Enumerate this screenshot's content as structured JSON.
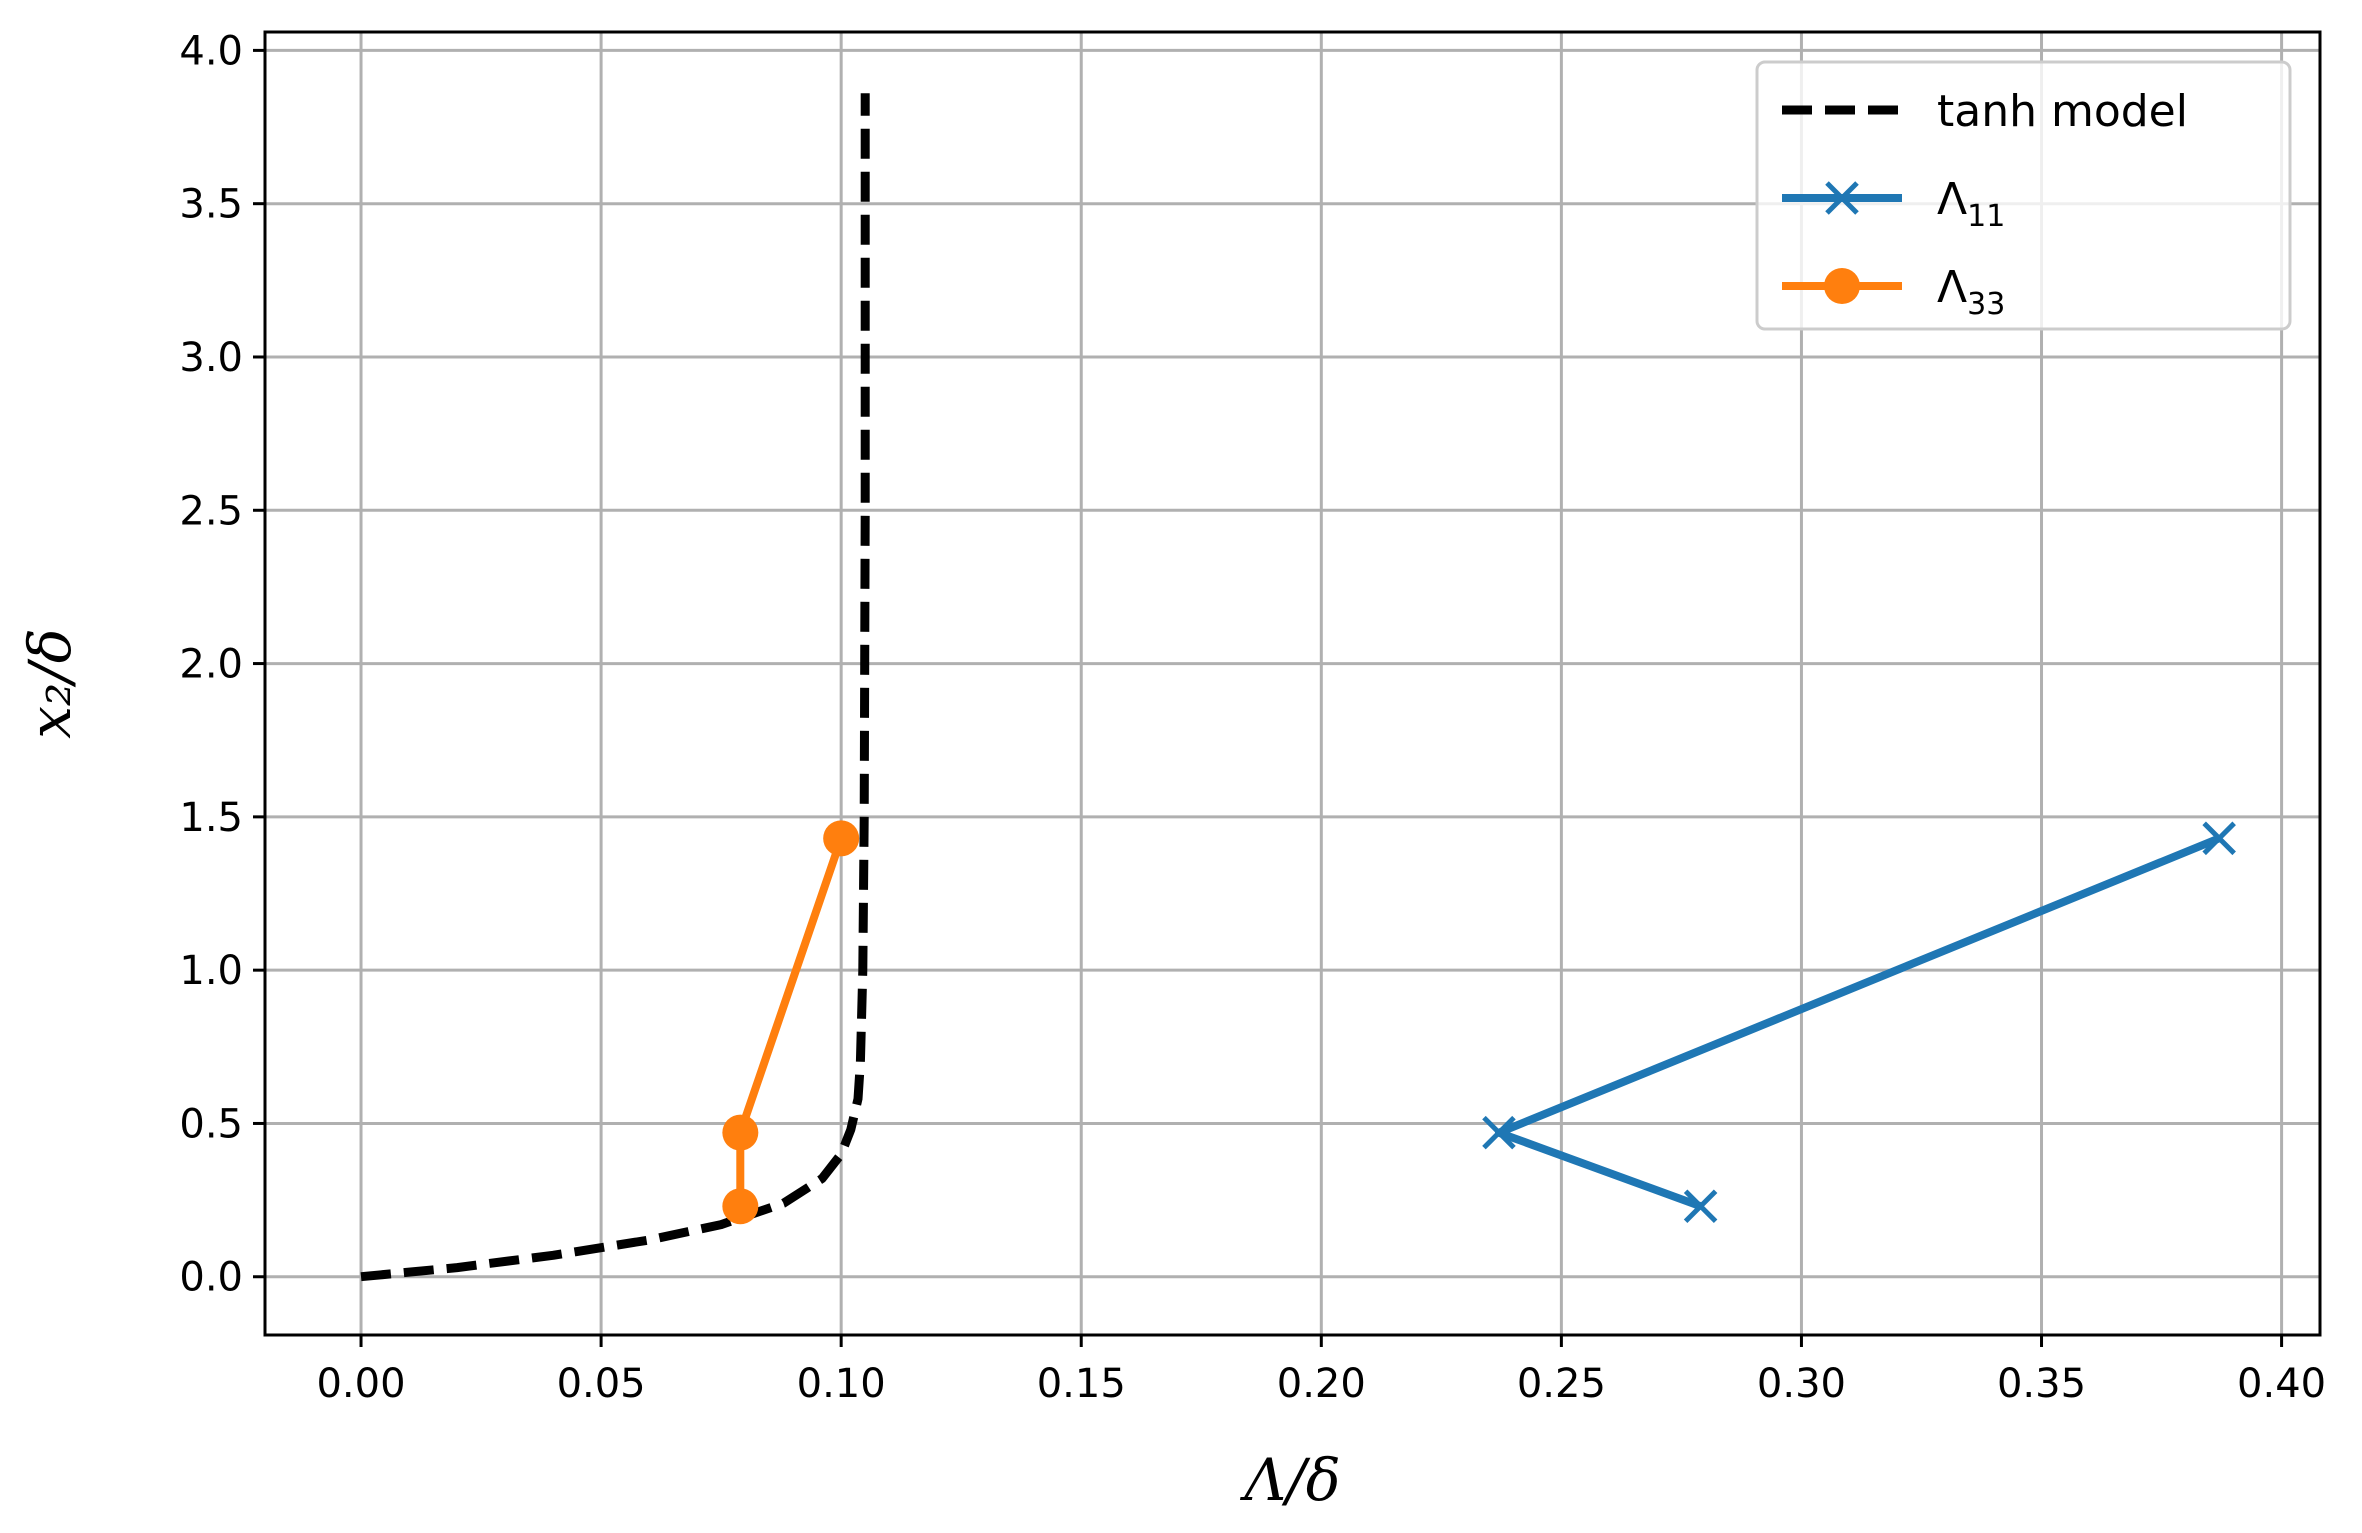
{
  "chart_data": {
    "type": "line",
    "xlabel": "Λ/δ",
    "ylabel": "x₂/δ",
    "xlim": [
      -0.02,
      0.408
    ],
    "ylim": [
      -0.19,
      4.06
    ],
    "xticks": [
      "0.00",
      "0.05",
      "0.10",
      "0.15",
      "0.20",
      "0.25",
      "0.30",
      "0.35",
      "0.40"
    ],
    "yticks": [
      "0.0",
      "0.5",
      "1.0",
      "1.5",
      "2.0",
      "2.5",
      "3.0",
      "3.5",
      "4.0"
    ],
    "grid": true,
    "legend_position": "top-right",
    "series": [
      {
        "name": "tanh model",
        "style": "dashed",
        "color": "#000000",
        "marker": "none",
        "x": [
          0.0,
          0.02,
          0.04,
          0.06,
          0.075,
          0.088,
          0.096,
          0.1,
          0.102,
          0.1035,
          0.104,
          0.1045,
          0.1048,
          0.105,
          0.105
        ],
        "y": [
          0.0,
          0.03,
          0.07,
          0.12,
          0.17,
          0.24,
          0.32,
          0.4,
          0.48,
          0.58,
          0.7,
          1.0,
          1.5,
          2.5,
          3.86
        ]
      },
      {
        "name": "Λ",
        "subscript": "11",
        "color": "#1f77b4",
        "marker": "x",
        "x": [
          0.279,
          0.237,
          0.387
        ],
        "y": [
          0.23,
          0.47,
          1.43
        ]
      },
      {
        "name": "Λ",
        "subscript": "33",
        "color": "#ff7f0e",
        "marker": "o",
        "x": [
          0.079,
          0.079,
          0.1
        ],
        "y": [
          0.23,
          0.47,
          1.43
        ]
      }
    ]
  }
}
